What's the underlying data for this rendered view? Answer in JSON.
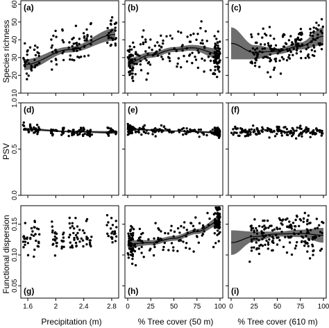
{
  "figure": {
    "row_titles": [
      "Species richness",
      "PSV",
      "Functional dispersion"
    ],
    "col_titles": [
      "Precipitation (m)",
      "% Tree cover (50 m)",
      "% Tree cover (610 m)"
    ]
  },
  "chart_data": [
    {
      "id": "a",
      "letter": "(a)",
      "type": "scatter",
      "xlabel": "Precipitation (m)",
      "ylabel": "Species richness",
      "xlim": [
        1.5,
        2.9
      ],
      "ylim": [
        10,
        62
      ],
      "xticks": [
        1.6,
        2.0,
        2.4,
        2.8
      ],
      "xtick_labels": [
        "1.6",
        "2",
        "2.4",
        "2.8"
      ],
      "yticks": [
        10,
        20,
        30,
        40,
        50,
        60
      ],
      "ytick_labels": [
        "10",
        "20",
        "30",
        "40",
        "50",
        "60"
      ],
      "x_clusters": [
        1.55,
        1.6,
        1.65,
        1.7,
        1.75,
        1.95,
        2.0,
        2.1,
        2.2,
        2.25,
        2.3,
        2.35,
        2.4,
        2.45,
        2.5,
        2.75,
        2.8,
        2.85
      ],
      "y_mean": [
        27,
        28,
        30,
        30,
        31,
        34,
        35,
        36,
        37,
        37,
        38,
        39,
        40,
        40,
        41,
        43,
        43,
        44
      ],
      "y_spread": 9,
      "n_points": 130,
      "fit": {
        "x": [
          1.55,
          2.2,
          2.85
        ],
        "y": [
          26,
          34.5,
          43
        ]
      },
      "ci_half": [
        3,
        1.6,
        3.4
      ]
    },
    {
      "id": "b",
      "letter": "(b)",
      "type": "scatter",
      "xlabel": "% Tree cover (50 m)",
      "ylabel": "",
      "xlim": [
        -3,
        103
      ],
      "ylim": [
        10,
        62
      ],
      "xticks": [
        0,
        25,
        50,
        75,
        100
      ],
      "xtick_labels": [
        "0",
        "25",
        "50",
        "75",
        "100"
      ],
      "yticks": [
        10,
        20,
        30,
        40,
        50,
        60
      ],
      "ytick_labels": [],
      "x_range": [
        0,
        100
      ],
      "dense_edges": true,
      "y_mean": 32,
      "y_spread": 10,
      "n_points": 210,
      "fit": {
        "x": [
          0,
          25,
          50,
          70,
          100
        ],
        "y": [
          27,
          31.5,
          34.5,
          35.5,
          32
        ]
      },
      "ci_half": [
        2.6,
        1.6,
        1.4,
        1.6,
        3
      ]
    },
    {
      "id": "c",
      "letter": "(c)",
      "type": "scatter",
      "xlabel": "% Tree cover (610 m)",
      "ylabel": "",
      "xlim": [
        -3,
        103
      ],
      "ylim": [
        10,
        62
      ],
      "xticks": [
        0,
        25,
        50,
        75,
        100
      ],
      "xtick_labels": [
        "0",
        "25",
        "50",
        "75",
        "100"
      ],
      "yticks": [
        10,
        20,
        30,
        40,
        50,
        60
      ],
      "ytick_labels": [],
      "x_range": [
        20,
        100
      ],
      "y_mean": 33,
      "y_spread": 10,
      "n_points": 170,
      "fit": {
        "x": [
          0,
          25,
          50,
          75,
          100
        ],
        "y": [
          38,
          33,
          33.5,
          36.5,
          42
        ]
      },
      "ci_half": [
        9,
        4,
        1.6,
        2,
        5
      ]
    },
    {
      "id": "d",
      "letter": "(d)",
      "type": "scatter",
      "xlabel": "Precipitation (m)",
      "ylabel": "PSV",
      "xlim": [
        1.5,
        2.9
      ],
      "ylim": [
        0.0,
        1.0
      ],
      "xticks": [
        1.6,
        2.0,
        2.4,
        2.8
      ],
      "xtick_labels": [
        "1.6",
        "2",
        "2.4",
        "2.8"
      ],
      "yticks": [
        0.0,
        0.5,
        1.0
      ],
      "ytick_labels": [
        "0.0",
        "0.5",
        "1.0"
      ],
      "x_clusters": [
        1.55,
        1.6,
        1.65,
        1.7,
        1.75,
        1.95,
        2.0,
        2.1,
        2.2,
        2.25,
        2.3,
        2.35,
        2.4,
        2.45,
        2.5,
        2.75,
        2.8,
        2.85
      ],
      "y_mean": [
        0.72,
        0.71,
        0.71,
        0.7,
        0.7,
        0.69,
        0.69,
        0.69,
        0.68,
        0.68,
        0.68,
        0.68,
        0.67,
        0.67,
        0.68,
        0.68,
        0.68,
        0.68
      ],
      "y_spread": 0.05,
      "n_points": 130,
      "fit": {
        "x": [
          1.55,
          2.2,
          2.85
        ],
        "y": [
          0.715,
          0.69,
          0.68
        ]
      },
      "ci_half": [
        0.015,
        0.008,
        0.015
      ]
    },
    {
      "id": "e",
      "letter": "(e)",
      "type": "scatter",
      "xlabel": "% Tree cover (50 m)",
      "ylabel": "",
      "xlim": [
        -3,
        103
      ],
      "ylim": [
        0.0,
        1.0
      ],
      "xticks": [
        0,
        25,
        50,
        75,
        100
      ],
      "xtick_labels": [
        "0",
        "25",
        "50",
        "75",
        "100"
      ],
      "yticks": [
        0.0,
        0.5,
        1.0
      ],
      "ytick_labels": [],
      "x_range": [
        0,
        100
      ],
      "dense_edges": true,
      "y_mean": 0.69,
      "y_spread": 0.045,
      "n_points": 200,
      "fit": {
        "x": [
          0,
          50,
          100
        ],
        "y": [
          0.715,
          0.695,
          0.68
        ]
      },
      "ci_half": [
        0.012,
        0.006,
        0.012
      ]
    },
    {
      "id": "f",
      "letter": "(f)",
      "type": "scatter",
      "xlabel": "% Tree cover (610 m)",
      "ylabel": "",
      "xlim": [
        -3,
        103
      ],
      "ylim": [
        0.0,
        1.0
      ],
      "xticks": [
        0,
        25,
        50,
        75,
        100
      ],
      "xtick_labels": [
        "0",
        "25",
        "50",
        "75",
        "100"
      ],
      "yticks": [
        0.0,
        0.5,
        1.0
      ],
      "ytick_labels": [],
      "x_range": [
        0,
        100
      ],
      "y_mean": 0.69,
      "y_spread": 0.045,
      "n_points": 160
    },
    {
      "id": "g",
      "letter": "(g)",
      "type": "scatter",
      "xlabel": "Precipitation (m)",
      "ylabel": "Functional dispersion",
      "xlim": [
        1.5,
        2.9
      ],
      "ylim": [
        0.03,
        0.18
      ],
      "xticks": [
        1.6,
        2.0,
        2.4,
        2.8
      ],
      "xtick_labels": [
        "1.6",
        "2",
        "2.4",
        "2.8"
      ],
      "yticks": [
        0.05,
        0.1,
        0.15
      ],
      "ytick_labels": [
        "0.05",
        "0.10",
        "0.15"
      ],
      "x_clusters": [
        1.55,
        1.6,
        1.65,
        1.7,
        1.75,
        1.95,
        2.0,
        2.1,
        2.2,
        2.25,
        2.3,
        2.35,
        2.4,
        2.45,
        2.5,
        2.75,
        2.8,
        2.85
      ],
      "y_mean": [
        0.125,
        0.125,
        0.13,
        0.13,
        0.135,
        0.13,
        0.125,
        0.13,
        0.13,
        0.135,
        0.13,
        0.13,
        0.135,
        0.135,
        0.13,
        0.14,
        0.14,
        0.135
      ],
      "y_spread": 0.025,
      "n_points": 130
    },
    {
      "id": "h",
      "letter": "(h)",
      "type": "scatter",
      "xlabel": "% Tree cover (50 m)",
      "ylabel": "",
      "xlim": [
        -3,
        103
      ],
      "ylim": [
        0.03,
        0.18
      ],
      "xticks": [
        0,
        25,
        50,
        75,
        100
      ],
      "xtick_labels": [
        "0",
        "25",
        "50",
        "75",
        "100"
      ],
      "yticks": [
        0.05,
        0.1,
        0.15
      ],
      "ytick_labels": [],
      "x_range": [
        0,
        100
      ],
      "dense_edges": true,
      "y_mean": 0.13,
      "y_spread": 0.025,
      "n_points": 210,
      "fit": {
        "x": [
          0,
          25,
          50,
          75,
          100
        ],
        "y": [
          0.118,
          0.12,
          0.127,
          0.138,
          0.155
        ]
      },
      "ci_half": [
        0.006,
        0.004,
        0.004,
        0.004,
        0.007
      ]
    },
    {
      "id": "i",
      "letter": "(i)",
      "type": "scatter",
      "xlabel": "% Tree cover (610 m)",
      "ylabel": "",
      "xlim": [
        -3,
        103
      ],
      "ylim": [
        0.03,
        0.18
      ],
      "xticks": [
        0,
        25,
        50,
        75,
        100
      ],
      "xtick_labels": [
        "0",
        "25",
        "50",
        "75",
        "100"
      ],
      "yticks": [
        0.05,
        0.1,
        0.15
      ],
      "ytick_labels": [],
      "x_range": [
        20,
        100
      ],
      "y_mean": 0.13,
      "y_spread": 0.028,
      "n_points": 170,
      "fit": {
        "x": [
          0,
          25,
          50,
          75,
          100
        ],
        "y": [
          0.12,
          0.13,
          0.134,
          0.135,
          0.132
        ]
      },
      "ci_half": [
        0.02,
        0.008,
        0.004,
        0.006,
        0.012
      ]
    }
  ]
}
